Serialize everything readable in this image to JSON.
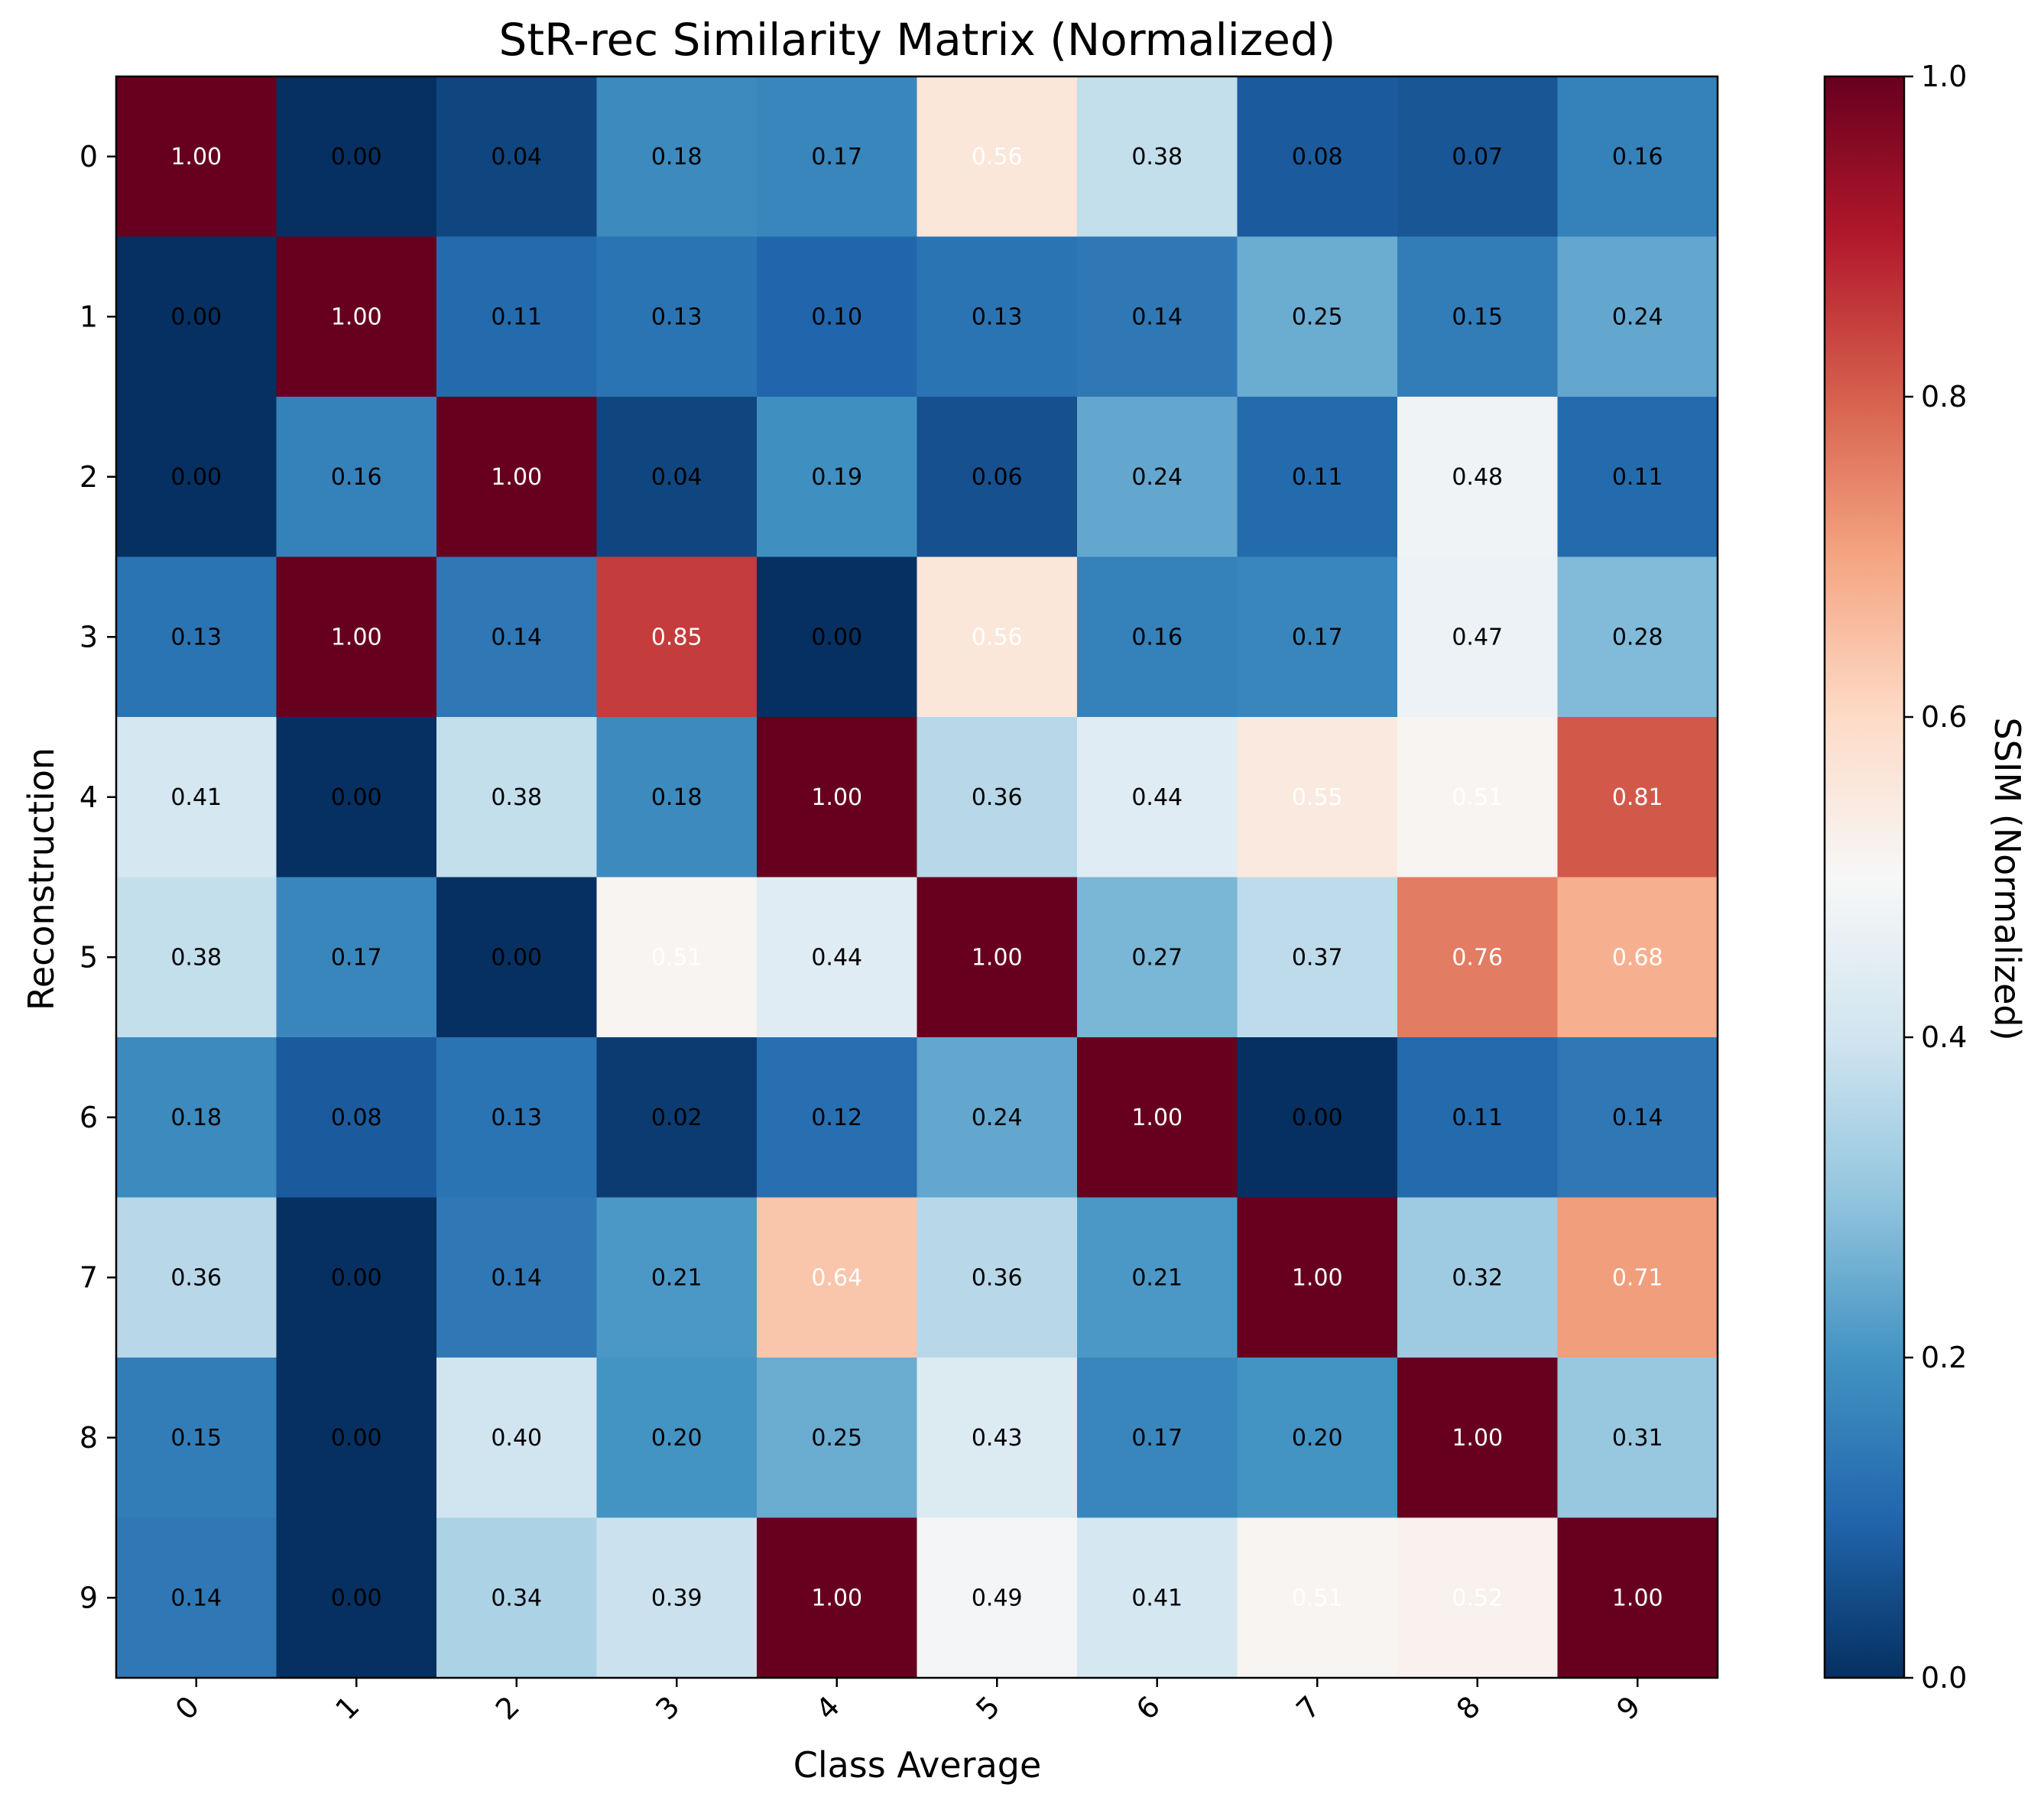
{
  "chart_data": {
    "type": "heatmap",
    "title": "StR-rec Similarity Matrix (Normalized)",
    "xlabel": "Class Average",
    "ylabel": "Reconstruction",
    "x_categories": [
      "0",
      "1",
      "2",
      "3",
      "4",
      "5",
      "6",
      "7",
      "8",
      "9"
    ],
    "y_categories": [
      "0",
      "1",
      "2",
      "3",
      "4",
      "5",
      "6",
      "7",
      "8",
      "9"
    ],
    "values": [
      [
        1.0,
        0.0,
        0.04,
        0.18,
        0.17,
        0.56,
        0.38,
        0.08,
        0.07,
        0.16
      ],
      [
        0.0,
        1.0,
        0.11,
        0.13,
        0.1,
        0.13,
        0.14,
        0.25,
        0.15,
        0.24
      ],
      [
        0.0,
        0.16,
        1.0,
        0.04,
        0.19,
        0.06,
        0.24,
        0.11,
        0.48,
        0.11
      ],
      [
        0.13,
        1.0,
        0.14,
        0.85,
        0.0,
        0.56,
        0.16,
        0.17,
        0.47,
        0.28
      ],
      [
        0.41,
        0.0,
        0.38,
        0.18,
        1.0,
        0.36,
        0.44,
        0.55,
        0.51,
        0.81
      ],
      [
        0.38,
        0.17,
        0.0,
        0.51,
        0.44,
        1.0,
        0.27,
        0.37,
        0.76,
        0.68
      ],
      [
        0.18,
        0.08,
        0.13,
        0.02,
        0.12,
        0.24,
        1.0,
        0.0,
        0.11,
        0.14
      ],
      [
        0.36,
        0.0,
        0.14,
        0.21,
        0.64,
        0.36,
        0.21,
        1.0,
        0.32,
        0.71
      ],
      [
        0.15,
        0.0,
        0.4,
        0.2,
        0.25,
        0.43,
        0.17,
        0.2,
        1.0,
        0.31
      ],
      [
        0.14,
        0.0,
        0.34,
        0.39,
        1.0,
        0.49,
        0.41,
        0.51,
        0.52,
        1.0
      ]
    ],
    "value_format": "0.00",
    "colormap": "RdBu_r",
    "vmin": 0.0,
    "vmax": 1.0,
    "colorbar": {
      "label": "SSIM (Normalized)",
      "ticks": [
        "0.0",
        "0.2",
        "0.4",
        "0.6",
        "0.8",
        "1.0"
      ],
      "tick_values": [
        0.0,
        0.2,
        0.4,
        0.6,
        0.8,
        1.0
      ]
    },
    "x_tick_rotation": "45 degrees",
    "grid": false
  }
}
